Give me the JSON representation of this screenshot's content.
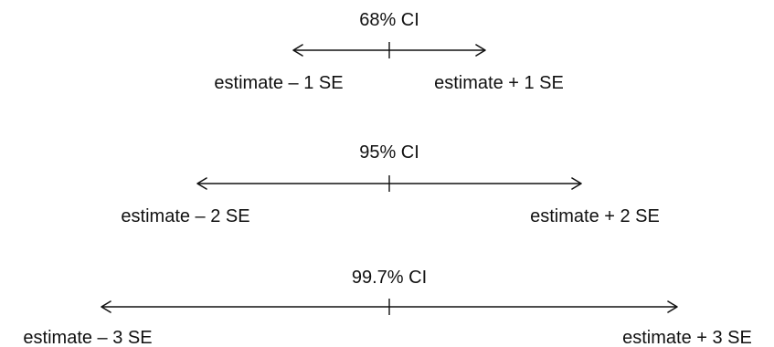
{
  "intervals": [
    {
      "title": "68% CI",
      "left_label": "estimate – 1 SE",
      "right_label": "estimate + 1 SE",
      "se_multiple": 1
    },
    {
      "title": "95% CI",
      "left_label": "estimate – 2 SE",
      "right_label": "estimate + 2 SE",
      "se_multiple": 2
    },
    {
      "title": "99.7% CI",
      "left_label": "estimate – 3 SE",
      "right_label": "estimate + 3 SE",
      "se_multiple": 3
    }
  ],
  "colors": {
    "ink": "#111111",
    "background": "#ffffff"
  }
}
